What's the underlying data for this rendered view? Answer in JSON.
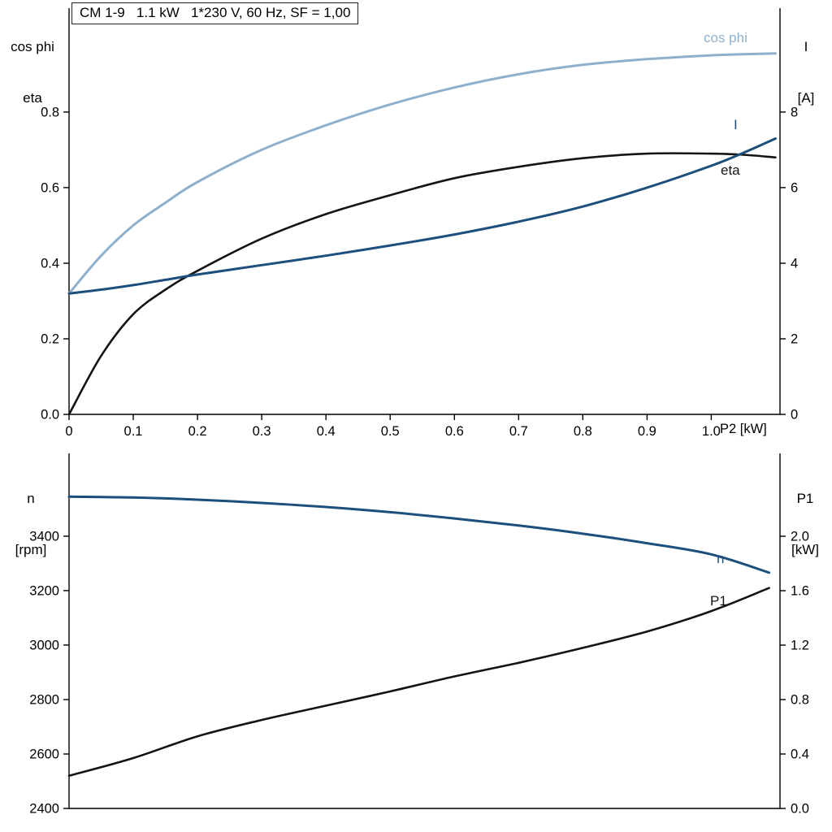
{
  "title_box": {
    "text": "CM 1-9   1.1 kW   1*230 V, 60 Hz, SF = 1,00"
  },
  "colors": {
    "light_blue": "#8fb0cc",
    "dark_blue": "#1c4f7c",
    "black": "#141414",
    "axis": "#000000"
  },
  "top_chart": {
    "left_axis_title": [
      "cos phi",
      "eta"
    ],
    "right_axis_title": [
      "I",
      "[A]"
    ],
    "x_axis_label": "P2 [kW]",
    "curve_labels": {
      "cos_phi": "cos phi",
      "current": "I",
      "eta": "eta"
    }
  },
  "bottom_chart": {
    "left_axis_title": [
      "n",
      "[rpm]"
    ],
    "right_axis_title": [
      "P1",
      "[kW]"
    ],
    "curve_labels": {
      "n": "n",
      "p1": "P1"
    }
  },
  "chart_data": [
    {
      "type": "line",
      "title": "CM 1-9 1.1 kW 1*230 V, 60 Hz, SF = 1,00",
      "xlabel": "P2 [kW]",
      "xlim": [
        0,
        1.107
      ],
      "grid": false,
      "legend_position": "curve-end-labels",
      "x_ticks": {
        "values": [
          0,
          0.1,
          0.2,
          0.3,
          0.4,
          0.5,
          0.6,
          0.7,
          0.8,
          0.9,
          1.0
        ],
        "labels": [
          "0",
          "0.1",
          "0.2",
          "0.3",
          "0.4",
          "0.5",
          "0.6",
          "0.7",
          "0.8",
          "0.9",
          "1.0"
        ]
      },
      "y_left": {
        "label": "cos phi / eta",
        "lim": [
          0,
          1.075
        ],
        "ticks": {
          "values": [
            0,
            0.2,
            0.4,
            0.6,
            0.8
          ],
          "labels": [
            "0.0",
            "0.2",
            "0.4",
            "0.6",
            "0.8"
          ]
        }
      },
      "y_right": {
        "label": "I [A]",
        "lim": [
          0,
          10.75
        ],
        "ticks": {
          "values": [
            0,
            2,
            4,
            6,
            8
          ],
          "labels": [
            "0",
            "2",
            "4",
            "6",
            "8"
          ]
        }
      },
      "x": [
        0,
        0.05,
        0.1,
        0.15,
        0.2,
        0.3,
        0.4,
        0.5,
        0.6,
        0.7,
        0.8,
        0.9,
        1.0,
        1.05,
        1.1
      ],
      "series": [
        {
          "name": "cos phi",
          "axis": "left",
          "color": "light_blue",
          "width": 3,
          "values": [
            0.32,
            0.42,
            0.5,
            0.56,
            0.615,
            0.7,
            0.765,
            0.82,
            0.865,
            0.9,
            0.925,
            0.94,
            0.95,
            0.953,
            0.955
          ]
        },
        {
          "name": "eta",
          "axis": "left",
          "color": "black",
          "width": 2.6,
          "values": [
            0.0,
            0.155,
            0.265,
            0.33,
            0.38,
            0.465,
            0.53,
            0.58,
            0.625,
            0.655,
            0.678,
            0.69,
            0.69,
            0.687,
            0.68
          ]
        },
        {
          "name": "I",
          "axis": "right",
          "color": "dark_blue",
          "width": 3,
          "values": [
            3.2,
            3.3,
            3.42,
            3.56,
            3.7,
            3.95,
            4.2,
            4.47,
            4.76,
            5.1,
            5.5,
            6.0,
            6.58,
            6.92,
            7.3
          ]
        }
      ]
    },
    {
      "type": "line",
      "xlabel": "",
      "xlim": [
        0,
        1.107
      ],
      "grid": false,
      "legend_position": "curve-end-labels",
      "y_left": {
        "label": "n [rpm]",
        "lim": [
          2400,
          3704
        ],
        "ticks": {
          "values": [
            2400,
            2600,
            2800,
            3000,
            3200,
            3400
          ],
          "labels": [
            "2400",
            "2600",
            "2800",
            "3000",
            "3200",
            "3400"
          ]
        }
      },
      "y_right": {
        "label": "P1 [kW]",
        "lim": [
          0,
          2.609
        ],
        "ticks": {
          "values": [
            0,
            0.4,
            0.8,
            1.2,
            1.6,
            2.0
          ],
          "labels": [
            "0.0",
            "0.4",
            "0.8",
            "1.2",
            "1.6",
            "2.0"
          ]
        }
      },
      "x": [
        0,
        0.1,
        0.2,
        0.3,
        0.4,
        0.5,
        0.6,
        0.7,
        0.8,
        0.9,
        1.0,
        1.09
      ],
      "series": [
        {
          "name": "n",
          "axis": "left",
          "color": "dark_blue",
          "width": 3,
          "values": [
            3545,
            3542,
            3534,
            3522,
            3507,
            3488,
            3465,
            3439,
            3409,
            3374,
            3333,
            3266
          ]
        },
        {
          "name": "P1",
          "axis": "right",
          "color": "black",
          "width": 2.6,
          "values": [
            0.24,
            0.37,
            0.53,
            0.65,
            0.755,
            0.86,
            0.97,
            1.07,
            1.18,
            1.3,
            1.45,
            1.62
          ]
        }
      ]
    }
  ]
}
